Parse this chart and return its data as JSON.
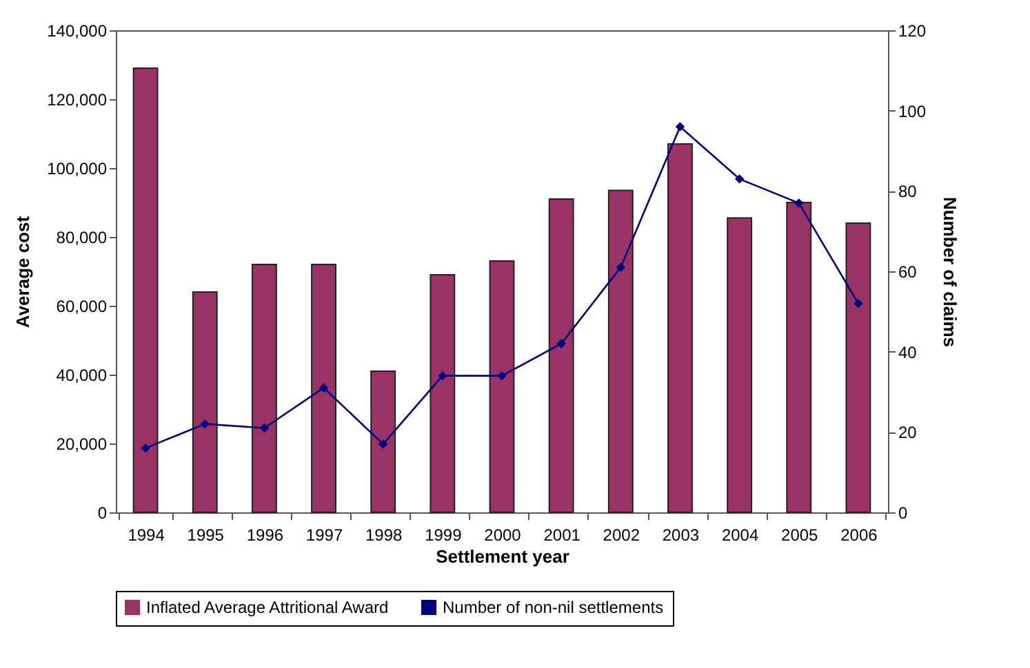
{
  "chart_data": {
    "type": "bar",
    "xlabel": "Settlement year",
    "ylabel": "Average cost",
    "y2label": "Number of claims",
    "categories": [
      "1994",
      "1995",
      "1996",
      "1997",
      "1998",
      "1999",
      "2000",
      "2001",
      "2002",
      "2003",
      "2004",
      "2005",
      "2006"
    ],
    "series": [
      {
        "name": "Inflated Average Attritional Award",
        "color": "#993366",
        "values": [
          129000,
          64000,
          72000,
          72000,
          41000,
          69000,
          73000,
          91000,
          93500,
          107000,
          85500,
          90000,
          84000
        ]
      },
      {
        "name": "Number of non-nil settlements",
        "type": "line",
        "axis": "y2",
        "color": "#000080",
        "marker": "diamond",
        "values": [
          16,
          22,
          21,
          31,
          17,
          34,
          34,
          42,
          61,
          96,
          83,
          77,
          52
        ]
      }
    ],
    "ylim": [
      0,
      140000
    ],
    "yticks": [
      0,
      {
        "value": 20000,
        "label": "20,000"
      },
      {
        "value": 40000,
        "label": "40,000"
      },
      {
        "value": 60000,
        "label": "60,000"
      },
      {
        "value": 80000,
        "label": "80,000"
      },
      {
        "value": 100000,
        "label": "100,000"
      },
      {
        "value": 120000,
        "label": "120,000"
      },
      {
        "value": 140000,
        "label": "140,000"
      }
    ],
    "y2lim": [
      0,
      120
    ],
    "y2ticks": [
      0,
      20,
      40,
      60,
      80,
      100,
      120
    ],
    "grid": false,
    "legend": "bottom"
  }
}
